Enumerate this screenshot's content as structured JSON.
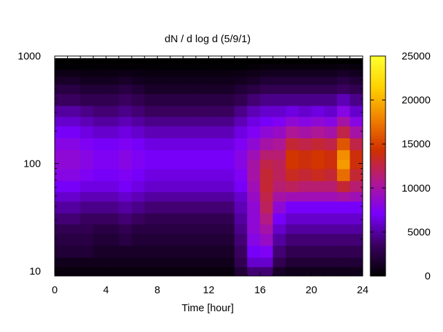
{
  "chart_data": {
    "type": "heatmap",
    "title": "dN / d log d (5/9/1)",
    "xlabel": "Time [hour]",
    "ylabel": "",
    "xlim": [
      0,
      24
    ],
    "ylim": [
      9,
      1000
    ],
    "y_scale": "log",
    "x_ticks": [
      "0",
      "4",
      "8",
      "12",
      "16",
      "20",
      "24"
    ],
    "y_ticks": [
      "10",
      "100",
      "1000"
    ],
    "colorbar": {
      "range": [
        0,
        25000
      ],
      "ticks": [
        "0",
        "5000",
        "10000",
        "15000",
        "20000",
        "25000"
      ],
      "palette": [
        "#000000",
        "#3a0060",
        "#7a00ff",
        "#b01890",
        "#d03000",
        "#f08000",
        "#ffd000",
        "#ffff30"
      ]
    },
    "diameter_bins": [
      10,
      12,
      15,
      20,
      25,
      30,
      40,
      50,
      60,
      80,
      100,
      120,
      150,
      200,
      250,
      300,
      400,
      500,
      600,
      700,
      800,
      900
    ],
    "time_bins": [
      0.5,
      1.5,
      2.5,
      3.5,
      4.5,
      5.5,
      6.5,
      7.5,
      8.5,
      9.5,
      10.5,
      11.5,
      12.5,
      13.5,
      14.5,
      15.5,
      16.5,
      17.5,
      18.5,
      19.5,
      20.5,
      21.5,
      22.5,
      23.5
    ],
    "rows": [
      [
        500,
        500,
        500,
        500,
        500,
        500,
        500,
        500,
        500,
        500,
        500,
        500,
        500,
        500,
        2000,
        4000,
        4000,
        1500,
        1000,
        1000,
        1000,
        1000,
        1000,
        1000
      ],
      [
        1000,
        1000,
        1000,
        1000,
        1000,
        1000,
        1000,
        1000,
        1000,
        1000,
        1000,
        1000,
        1000,
        1000,
        3000,
        6000,
        6000,
        3000,
        2000,
        2000,
        2000,
        2000,
        2000,
        2000
      ],
      [
        2000,
        2000,
        2000,
        1500,
        1500,
        1500,
        1500,
        1500,
        1500,
        1500,
        1500,
        1500,
        1500,
        1500,
        3500,
        7000,
        7500,
        4000,
        3000,
        3000,
        3000,
        3000,
        3000,
        3000
      ],
      [
        2500,
        2500,
        2500,
        2000,
        2000,
        2500,
        2000,
        2000,
        2000,
        2000,
        2000,
        2000,
        2000,
        2000,
        4000,
        8000,
        9000,
        5000,
        4000,
        4000,
        4000,
        4000,
        4000,
        4000
      ],
      [
        3000,
        3000,
        3000,
        2500,
        2500,
        3000,
        2500,
        2500,
        2500,
        2500,
        2500,
        2500,
        2500,
        2500,
        4500,
        8500,
        10000,
        6000,
        5000,
        5000,
        5000,
        5000,
        5000,
        5000
      ],
      [
        4000,
        4000,
        3500,
        3500,
        3500,
        4000,
        3500,
        3000,
        3000,
        3000,
        3000,
        3000,
        3000,
        3000,
        5000,
        8500,
        11000,
        7000,
        6000,
        6000,
        6000,
        6000,
        6000,
        6000
      ],
      [
        5000,
        5000,
        4500,
        4500,
        4500,
        5000,
        4500,
        4000,
        4000,
        4000,
        4000,
        4000,
        4000,
        4000,
        5500,
        8500,
        12000,
        8500,
        7000,
        7000,
        7000,
        7000,
        7000,
        7000
      ],
      [
        6000,
        6000,
        5500,
        5500,
        5500,
        6000,
        5500,
        5000,
        5000,
        5000,
        5000,
        5000,
        5000,
        5000,
        6000,
        9000,
        12500,
        10000,
        9500,
        9500,
        9500,
        9500,
        10000,
        9500
      ],
      [
        7000,
        7000,
        6500,
        6500,
        6500,
        7000,
        6500,
        6000,
        6000,
        6000,
        6000,
        6000,
        6000,
        6000,
        7000,
        9500,
        13000,
        11500,
        12000,
        11500,
        11500,
        11500,
        13000,
        11500
      ],
      [
        8000,
        8000,
        7500,
        7000,
        7000,
        7500,
        7000,
        6500,
        6500,
        6500,
        6500,
        6500,
        6500,
        6500,
        7500,
        10000,
        13000,
        12000,
        13500,
        13000,
        13500,
        13000,
        17000,
        13000
      ],
      [
        8500,
        8500,
        8000,
        7500,
        7500,
        8000,
        7500,
        7000,
        7000,
        7000,
        7000,
        7000,
        7000,
        7000,
        8000,
        10000,
        12500,
        12000,
        14500,
        14000,
        14500,
        14000,
        19000,
        14000
      ],
      [
        8500,
        8500,
        8000,
        7500,
        7500,
        8000,
        7500,
        7000,
        7000,
        7000,
        7000,
        7000,
        7000,
        7000,
        8000,
        9500,
        11500,
        11500,
        14500,
        14000,
        14500,
        14000,
        18500,
        14000
      ],
      [
        8000,
        8000,
        7500,
        7000,
        7000,
        7500,
        7000,
        6500,
        6500,
        6500,
        6500,
        6500,
        6500,
        6500,
        7500,
        8500,
        10000,
        10500,
        13000,
        12500,
        13000,
        12500,
        16000,
        12500
      ],
      [
        7000,
        7000,
        6500,
        6000,
        6000,
        6500,
        6000,
        5500,
        5500,
        5500,
        5500,
        5500,
        5500,
        5500,
        6500,
        7500,
        8500,
        9000,
        10500,
        10000,
        10500,
        10000,
        12500,
        10000
      ],
      [
        6000,
        6000,
        5500,
        5000,
        5000,
        5500,
        5000,
        4500,
        4500,
        4500,
        4500,
        4500,
        4500,
        4500,
        5500,
        6500,
        7000,
        7500,
        8500,
        8000,
        8500,
        8000,
        10000,
        8000
      ],
      [
        5000,
        5000,
        4500,
        4000,
        4000,
        4500,
        4000,
        3500,
        3500,
        3500,
        3500,
        3500,
        3500,
        3500,
        4500,
        5500,
        6000,
        6000,
        6500,
        6000,
        6500,
        6000,
        8000,
        6000
      ],
      [
        3500,
        3500,
        3000,
        3000,
        3000,
        3500,
        3000,
        2500,
        2500,
        2500,
        2500,
        2500,
        2500,
        2500,
        3000,
        4000,
        4500,
        4500,
        4500,
        4500,
        4500,
        4500,
        5500,
        4500
      ],
      [
        2500,
        2500,
        2000,
        2000,
        2000,
        2500,
        2000,
        1500,
        1500,
        1500,
        1500,
        1500,
        1500,
        1500,
        2000,
        2500,
        3000,
        3000,
        3000,
        3000,
        3000,
        3000,
        3500,
        3000
      ],
      [
        1500,
        1500,
        1200,
        1200,
        1200,
        1500,
        1200,
        1000,
        1000,
        1000,
        1000,
        1000,
        1000,
        1000,
        1200,
        1500,
        2000,
        2000,
        2000,
        2000,
        2000,
        2000,
        2500,
        2000
      ],
      [
        800,
        800,
        700,
        700,
        700,
        800,
        700,
        600,
        600,
        600,
        600,
        600,
        600,
        600,
        700,
        900,
        1200,
        1200,
        1200,
        1200,
        1200,
        1200,
        1500,
        1200
      ],
      [
        200,
        200,
        200,
        200,
        200,
        200,
        200,
        200,
        200,
        200,
        200,
        200,
        200,
        200,
        200,
        300,
        500,
        500,
        500,
        500,
        500,
        500,
        600,
        500
      ],
      [
        0,
        0,
        0,
        0,
        0,
        0,
        0,
        0,
        0,
        0,
        0,
        0,
        0,
        0,
        0,
        0,
        0,
        0,
        0,
        0,
        0,
        0,
        0,
        0
      ]
    ]
  }
}
